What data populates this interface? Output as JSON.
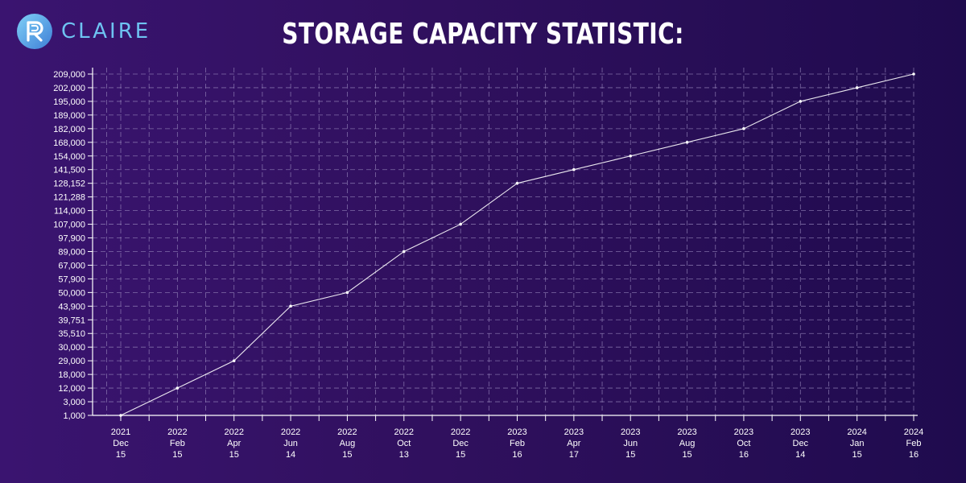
{
  "brand": {
    "name": "CLAIRE",
    "logo_icon": "claire-r-logo-icon",
    "accent_color": "#6ec3f2"
  },
  "chart_data": {
    "type": "line",
    "title": "STORAGE CAPACITY STATISTIC:",
    "xlabel": "",
    "ylabel": "",
    "y_scale": "categorical-ticks",
    "y_ticks": [
      "1,000",
      "3,000",
      "12,000",
      "18,000",
      "29,000",
      "30,000",
      "35,510",
      "39,751",
      "43,900",
      "50,000",
      "57,900",
      "67,000",
      "89,000",
      "97,900",
      "107,000",
      "114,000",
      "121,288",
      "128,152",
      "141,500",
      "154,000",
      "168,000",
      "182,000",
      "189,000",
      "195,000",
      "202,000",
      "209,000"
    ],
    "x": [
      [
        "2021",
        "Dec",
        "15"
      ],
      [
        "2022",
        "Feb",
        "15"
      ],
      [
        "2022",
        "Apr",
        "15"
      ],
      [
        "2022",
        "Jun",
        "14"
      ],
      [
        "2022",
        "Aug",
        "15"
      ],
      [
        "2022",
        "Oct",
        "13"
      ],
      [
        "2022",
        "Dec",
        "15"
      ],
      [
        "2023",
        "Feb",
        "16"
      ],
      [
        "2023",
        "Apr",
        "17"
      ],
      [
        "2023",
        "Jun",
        "15"
      ],
      [
        "2023",
        "Aug",
        "15"
      ],
      [
        "2023",
        "Oct",
        "16"
      ],
      [
        "2023",
        "Dec",
        "14"
      ],
      [
        "2024",
        "Jan",
        "15"
      ],
      [
        "2024",
        "Feb",
        "16"
      ]
    ],
    "series": [
      {
        "values": [
          1000,
          12000,
          29000,
          43900,
          50000,
          89000,
          107000,
          128152,
          141500,
          154000,
          168000,
          182000,
          195000,
          202000,
          209000
        ]
      }
    ],
    "grid": true,
    "colors": {
      "line": "#ffffff",
      "grid": "#9b8bbf",
      "axis": "#ffffff"
    }
  }
}
